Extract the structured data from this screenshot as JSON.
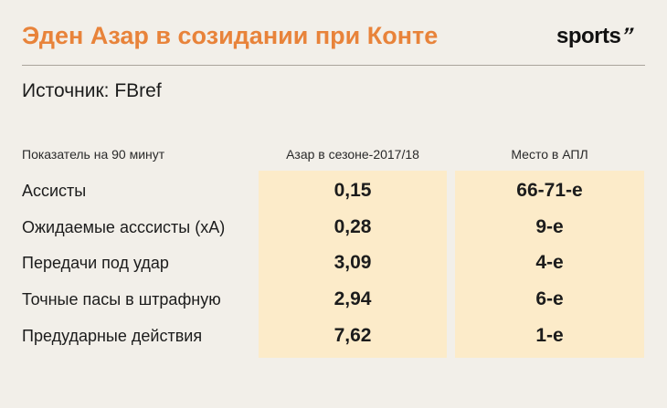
{
  "title": "Эден Азар в созидании при Конте",
  "logo": {
    "text": "sports",
    "mark": "’’"
  },
  "source": "Источник: FBref",
  "table": {
    "headers": [
      "Показатель на 90 минут",
      "Азар в сезоне-2017/18",
      "Место в АПЛ"
    ],
    "rows": [
      {
        "metric": "Ассисты",
        "value": "0,15",
        "rank": "66-71-е"
      },
      {
        "metric": "Ожидаемые асссисты (xA)",
        "value": "0,28",
        "rank": "9-е"
      },
      {
        "metric": "Передачи под удар",
        "value": "3,09",
        "rank": "4-е"
      },
      {
        "metric": "Точные пасы в штрафную",
        "value": "2,94",
        "rank": "6-е"
      },
      {
        "metric": "Предударные действия",
        "value": "7,62",
        "rank": "1-е"
      }
    ]
  },
  "colors": {
    "title": "#e8833a",
    "highlight": "#fcebc9",
    "background": "#f2efe9"
  }
}
